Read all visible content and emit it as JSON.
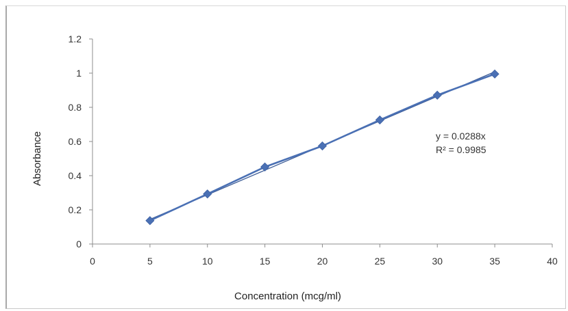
{
  "chart_data": {
    "type": "scatter",
    "title": "",
    "xlabel": "Concentration (mcg/ml)",
    "ylabel": "Absorbance",
    "xlim": [
      0,
      40
    ],
    "ylim": [
      0,
      1.2
    ],
    "xticks": [
      "0",
      "5",
      "10",
      "15",
      "20",
      "25",
      "30",
      "35",
      "40"
    ],
    "yticks": [
      "0",
      "0.2",
      "0.4",
      "0.6",
      "0.8",
      "1",
      "1.2"
    ],
    "grid": false,
    "legend": "none",
    "series": [
      {
        "marker": "diamond",
        "line": "connected",
        "color": "#4a70b4",
        "x": [
          5,
          10,
          15,
          20,
          25,
          30,
          35
        ],
        "y": [
          0.137,
          0.293,
          0.451,
          0.574,
          0.726,
          0.871,
          0.995
        ]
      }
    ],
    "trendline": {
      "type": "linear",
      "slope": 0.0288,
      "color": "#3d5c96",
      "equation": "y = 0.0288x",
      "r_squared": "R² = 0.9985"
    }
  }
}
